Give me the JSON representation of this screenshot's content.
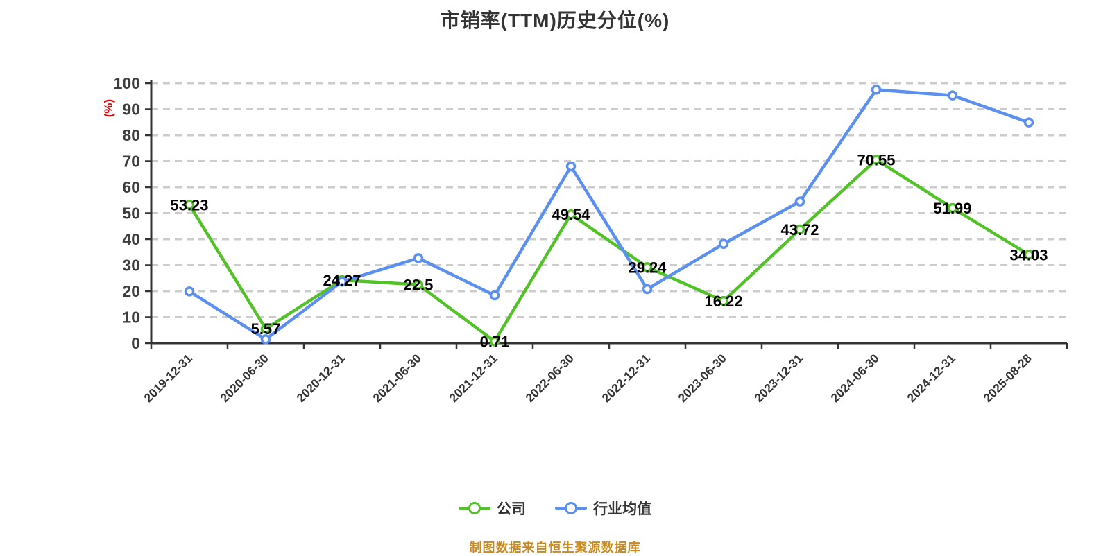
{
  "title": "市销率(TTM)历史分位(%)",
  "source_note": "制图数据来自恒生聚源数据库",
  "colors": {
    "background": "#ffffff",
    "title_text": "#333333",
    "axis": "#333333",
    "gridline": "#cccccc",
    "tick_label": "#3d3d3d",
    "data_label": "#000000",
    "unit_label_red": "#e60000",
    "source_note_orange": "#c8891f",
    "company_green": "#53c228",
    "industry_blue": "#5b8ff0"
  },
  "chart_data": {
    "type": "line",
    "title": "市销率(TTM)历史分位(%)",
    "xlabel": "",
    "ylabel": "(%)",
    "ylim": [
      0,
      100
    ],
    "ytick_step": 10,
    "grid": "horizontal-dashed",
    "legend_position": "bottom-center",
    "categories": [
      "2019-12-31",
      "2020-06-30",
      "2020-12-31",
      "2021-06-30",
      "2021-12-31",
      "2022-06-30",
      "2022-12-31",
      "2023-06-30",
      "2023-12-31",
      "2024-06-30",
      "2024-12-31",
      "2025-08-28"
    ],
    "series": [
      {
        "name": "公司",
        "color": "#53c228",
        "point_labels": true,
        "values": [
          53.23,
          5.57,
          24.27,
          22.5,
          0.71,
          49.54,
          29.24,
          16.22,
          43.72,
          70.55,
          51.99,
          34.03
        ]
      },
      {
        "name": "行业均值",
        "color": "#5b8ff0",
        "point_labels": false,
        "values": [
          19.9,
          1.5,
          23.7,
          32.7,
          18.4,
          68.0,
          20.8,
          38.2,
          54.5,
          97.5,
          95.3,
          84.9
        ]
      }
    ],
    "unit_label": "(%)"
  },
  "legend": {
    "items": [
      {
        "label": "公司"
      },
      {
        "label": "行业均值"
      }
    ]
  }
}
